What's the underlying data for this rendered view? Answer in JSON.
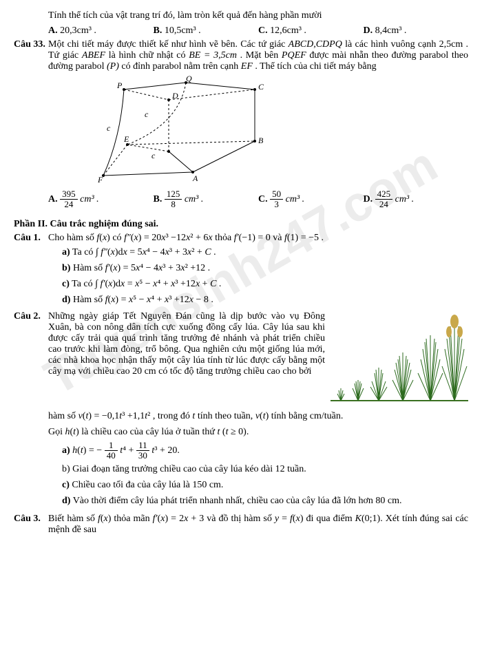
{
  "watermark": "Tuyensinh247.com",
  "intro_line": "Tính thể tích của vật trang trí đó, làm tròn kết quả đến hàng phần mười",
  "intro_choices": {
    "A": "20,3cm³ .",
    "B": "10,5cm³ .",
    "C": "12,6cm³ .",
    "D": "8,4cm³ ."
  },
  "q33": {
    "label": "Câu 33.",
    "text1": "Một chi tiết máy được thiết kế như hình vẽ bên. Các tứ giác ",
    "abcd": "ABCD,CDPQ",
    "text2": " là các hình vuông cạnh ",
    "val1": "2,5cm",
    "text3": " . Tứ giác ",
    "abef": "ABEF",
    "text4": " là hình chữ nhật có ",
    "be": "BE = 3,5cm",
    "text5": " . Mặt bên ",
    "pqef": "PQEF",
    "text6": " được mài nhẵn theo đường parabol ",
    "p": "(P)",
    "text7": " có đỉnh parabol nằm trên cạnh ",
    "ef": "EF",
    "text8": " . Thể tích của chi tiết máy bằng",
    "choiceA_num": "395",
    "choiceA_den": "24",
    "unit": "cm³ .",
    "choiceB_num": "125",
    "choiceB_den": "8",
    "choiceC_num": "50",
    "choiceC_den": "3",
    "choiceD_num": "425",
    "choiceD_den": "24",
    "diagram_labels": {
      "P": "P",
      "Q": "Q",
      "C": "C",
      "D": "D",
      "E": "E",
      "B": "B",
      "A": "A",
      "F": "F",
      "c": "c"
    }
  },
  "section2": "Phần II. Câu trắc nghiệm đúng sai.",
  "q1": {
    "label": "Câu 1.",
    "intro": "Cho hàm số f(x) có f″(x) = 20x³ −12x² + 6x thỏa f′(−1) = 0 và f(1) = −5 .",
    "a": "a) Ta có ∫ f″(x)dx = 5x⁴ − 4x³ + 3x² + C .",
    "b": "b) Hàm số f′(x) = 5x⁴ − 4x³ + 3x² +12 .",
    "c": "c) Ta có ∫ f′(x)dx = x⁵ − x⁴ + x³ +12x + C .",
    "d": "d) Hàm số f(x) = x⁵ − x⁴ + x³ +12x − 8 ."
  },
  "q2": {
    "label": "Câu 2.",
    "para": "Những ngày giáp Tết Nguyên Đán cũng là dịp bước vào vụ Đông Xuân, bà con nông dân tích cực xuống đồng cấy lúa. Cây lúa sau khi được cấy trải qua quá trình tăng trưởng đẻ nhánh và phát triển chiều cao trước khi làm đòng, trổ bông. Qua nghiên cứu một giống lúa mới, các nhà khoa học nhận thấy một cây lúa tính từ lúc được cấy bằng một cây mạ với chiều cao 20 cm có tốc độ tăng trưởng chiều cao cho bởi",
    "formula": "hàm số v(t) = −0,1t³ +1,1t² , trong đó t tính theo tuần, v(t) tính bằng cm/tuần.",
    "goi": "Gọi h(t) là chiều cao của cây lúa ở tuần thứ t (t ≥ 0).",
    "a_pre": "a) h(t) = −",
    "a_f1_num": "1",
    "a_f1_den": "40",
    "a_mid1": "t⁴ +",
    "a_f2_num": "11",
    "a_f2_den": "30",
    "a_mid2": "t³ + 20.",
    "b": "b) Giai đoạn tăng trưởng chiều cao của cây lúa kéo dài 12 tuần.",
    "c": "c) Chiều cao tối đa của cây lúa là 150 cm.",
    "d": "d) Vào thời điểm cây lúa phát triển nhanh nhất, chiều cao của cây lúa đã lớn hơn 80 cm."
  },
  "q3": {
    "label": "Câu 3.",
    "text": "Biết hàm số f(x) thỏa mãn f′(x) = 2x + 3 và đồ thị hàm số y = f(x) đi qua điểm K(0;1). Xét tính đúng sai các mệnh đề sau"
  }
}
